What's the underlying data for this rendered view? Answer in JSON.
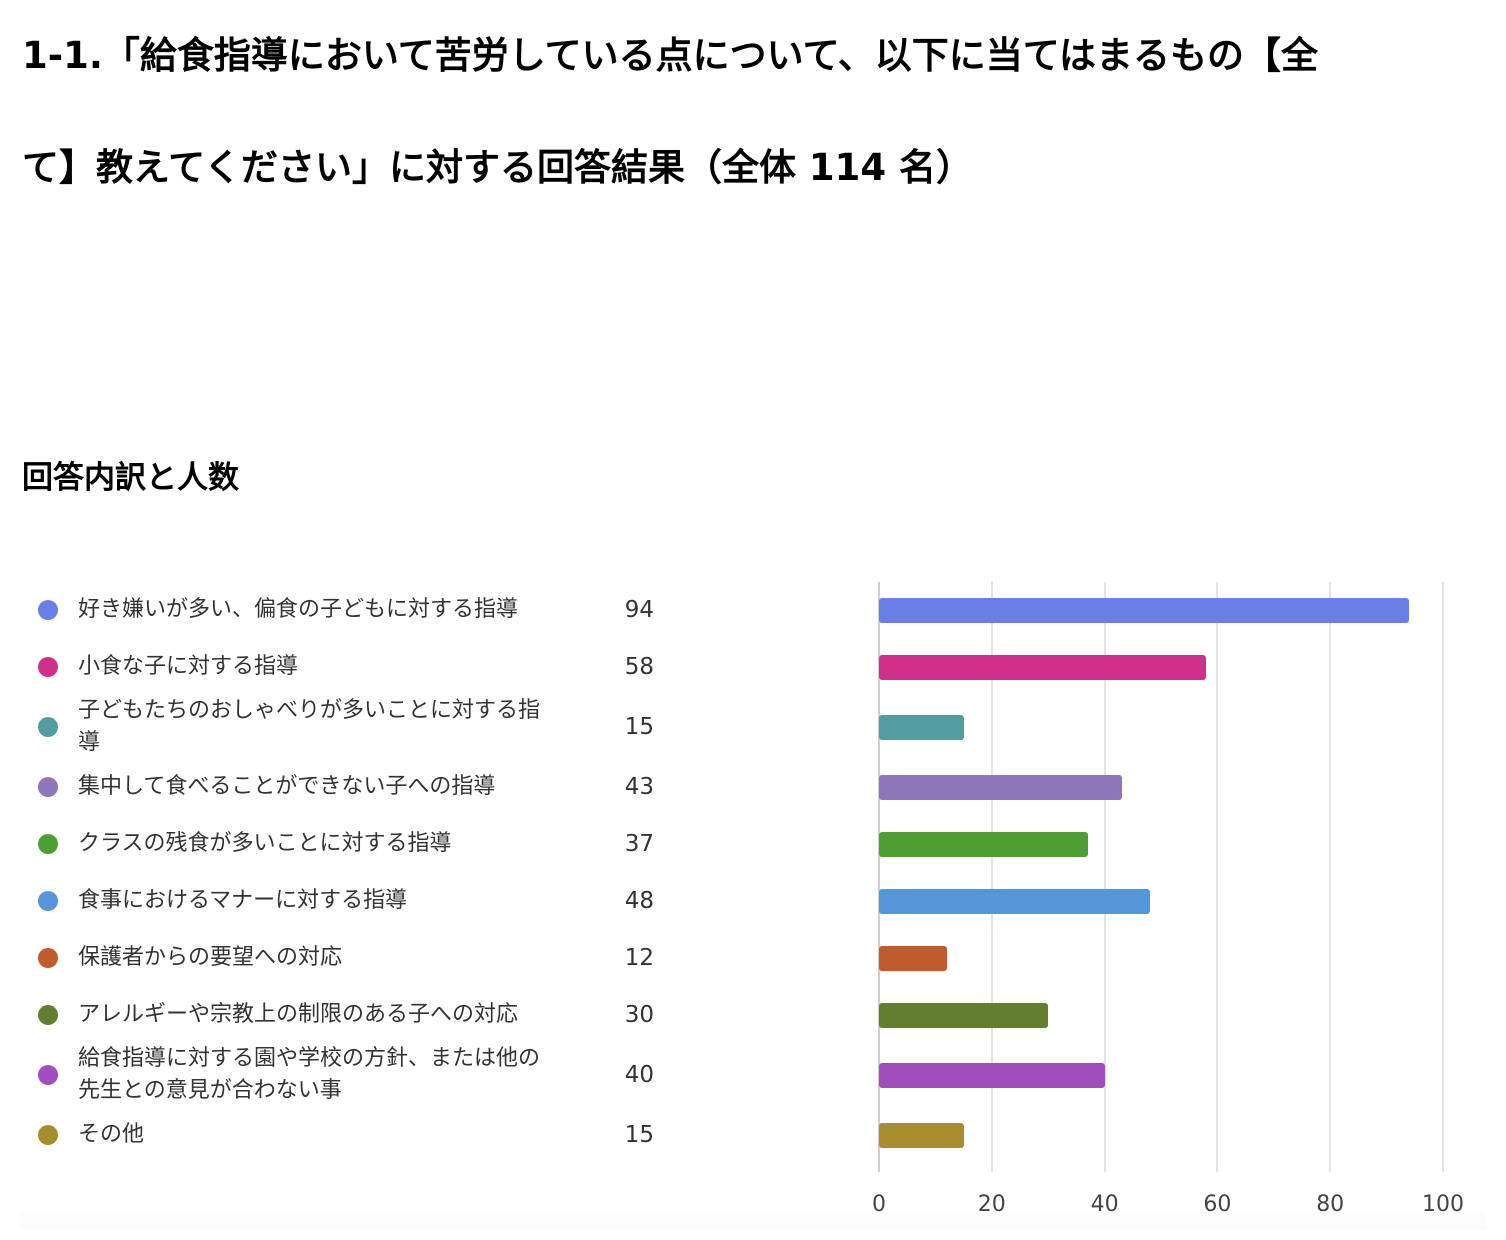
{
  "header": {
    "title": "1-1.「給食指導において苦労している点について、以下に当てはまるもの【全て】教えてください」に対する回答結果（全体 114 名）",
    "subtitle": "回答内訳と人数"
  },
  "chart_data": {
    "type": "bar",
    "orientation": "horizontal",
    "title": "回答内訳と人数",
    "categories": [
      "好き嫌いが多い、偏食の子どもに対する指導",
      "小食な子に対する指導",
      "子どもたちのおしゃべりが多いことに対する指導",
      "集中して食べることができない子への指導",
      "クラスの残食が多いことに対する指導",
      "食事におけるマナーに対する指導",
      "保護者からの要望への対応",
      "アレルギーや宗教上の制限のある子への対応",
      "給食指導に対する園や学校の方針、または他の先生との意見が合わない事",
      "その他"
    ],
    "values": [
      94,
      58,
      15,
      43,
      37,
      48,
      12,
      30,
      40,
      15
    ],
    "colors": [
      "#6a7fe6",
      "#d0308a",
      "#519da2",
      "#8e76bb",
      "#4d9e33",
      "#5596d8",
      "#c05b2b",
      "#617f2e",
      "#a14ebc",
      "#a88d2f"
    ],
    "xlim": [
      0,
      100
    ],
    "xticks": [
      "0",
      "20",
      "40",
      "60",
      "80",
      "100"
    ],
    "grid": true,
    "legend_position": "left",
    "xlabel": "",
    "ylabel": ""
  },
  "legend": {
    "items": [
      {
        "label": "好き嫌いが多い、偏食の子どもに対する指導",
        "value": "94",
        "color": "#6a7fe6"
      },
      {
        "label": "小食な子に対する指導",
        "value": "58",
        "color": "#d0308a"
      },
      {
        "label": "子どもたちのおしゃべりが多いことに対する指導",
        "value": "15",
        "color": "#519da2"
      },
      {
        "label": "集中して食べることができない子への指導",
        "value": "43",
        "color": "#8e76bb"
      },
      {
        "label": "クラスの残食が多いことに対する指導",
        "value": "37",
        "color": "#4d9e33"
      },
      {
        "label": "食事におけるマナーに対する指導",
        "value": "48",
        "color": "#5596d8"
      },
      {
        "label": "保護者からの要望への対応",
        "value": "12",
        "color": "#c05b2b"
      },
      {
        "label": "アレルギーや宗教上の制限のある子への対応",
        "value": "30",
        "color": "#617f2e"
      },
      {
        "label": "給食指導に対する園や学校の方針、または他の先生との意見が合わない事",
        "value": "40",
        "color": "#a14ebc"
      },
      {
        "label": "その他",
        "value": "15",
        "color": "#a88d2f"
      }
    ]
  }
}
